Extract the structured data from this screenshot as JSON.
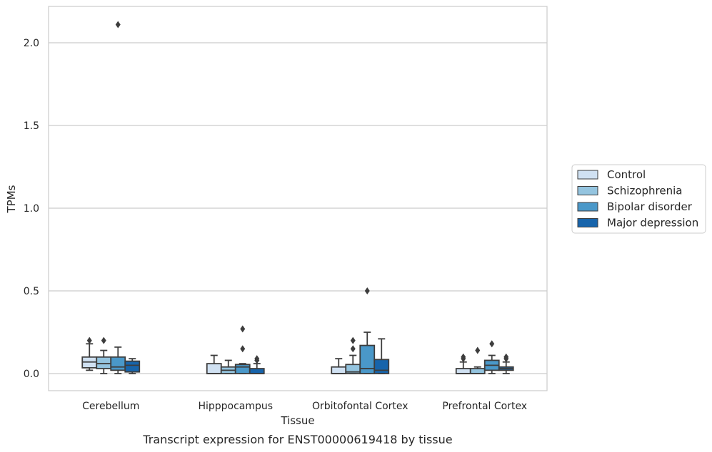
{
  "chart_data": {
    "type": "box",
    "title": "",
    "xlabel": "Tissue",
    "ylabel": "TPMs",
    "caption": "Transcript expression for ENST00000619418 by tissue",
    "ylim": [
      -0.1,
      2.22
    ],
    "yticks": [
      0.0,
      0.5,
      1.0,
      1.5,
      2.0
    ],
    "ytick_labels": [
      "0.0",
      "0.5",
      "1.0",
      "1.5",
      "2.0"
    ],
    "grid": "horizontal",
    "legend_position": "right",
    "categories": [
      "Cerebellum",
      "Hipppocampus",
      "Orbitofontal Cortex",
      "Prefrontal Cortex"
    ],
    "series": [
      {
        "name": "Control",
        "color": "#d0e1f2",
        "boxes": [
          {
            "whislo": 0.02,
            "q1": 0.035,
            "med": 0.07,
            "q3": 0.1,
            "whishi": 0.18,
            "fliers": [
              0.2
            ]
          },
          {
            "whislo": 0.0,
            "q1": 0.0,
            "med": 0.0,
            "q3": 0.06,
            "whishi": 0.11,
            "fliers": []
          },
          {
            "whislo": 0.0,
            "q1": 0.0,
            "med": 0.0,
            "q3": 0.04,
            "whishi": 0.09,
            "fliers": []
          },
          {
            "whislo": 0.0,
            "q1": 0.0,
            "med": 0.0,
            "q3": 0.03,
            "whishi": 0.07,
            "fliers": [
              0.09,
              0.1
            ]
          }
        ]
      },
      {
        "name": "Schizophrenia",
        "color": "#94c4df",
        "boxes": [
          {
            "whislo": 0.0,
            "q1": 0.03,
            "med": 0.06,
            "q3": 0.1,
            "whishi": 0.14,
            "fliers": [
              0.2
            ]
          },
          {
            "whislo": 0.0,
            "q1": 0.0,
            "med": 0.02,
            "q3": 0.04,
            "whishi": 0.08,
            "fliers": []
          },
          {
            "whislo": 0.0,
            "q1": 0.0,
            "med": 0.01,
            "q3": 0.055,
            "whishi": 0.11,
            "fliers": [
              0.15,
              0.2
            ]
          },
          {
            "whislo": 0.0,
            "q1": 0.0,
            "med": 0.0,
            "q3": 0.03,
            "whishi": 0.04,
            "fliers": [
              0.14
            ]
          }
        ]
      },
      {
        "name": "Bipolar disorder",
        "color": "#4a98c9",
        "boxes": [
          {
            "whislo": 0.0,
            "q1": 0.02,
            "med": 0.04,
            "q3": 0.1,
            "whishi": 0.16,
            "fliers": [
              2.11
            ]
          },
          {
            "whislo": 0.0,
            "q1": 0.0,
            "med": 0.04,
            "q3": 0.055,
            "whishi": 0.06,
            "fliers": [
              0.15,
              0.27
            ]
          },
          {
            "whislo": 0.0,
            "q1": 0.0,
            "med": 0.03,
            "q3": 0.17,
            "whishi": 0.25,
            "fliers": [
              0.5
            ]
          },
          {
            "whislo": 0.0,
            "q1": 0.02,
            "med": 0.05,
            "q3": 0.08,
            "whishi": 0.11,
            "fliers": [
              0.18
            ]
          }
        ]
      },
      {
        "name": "Major depression",
        "color": "#1764ab",
        "boxes": [
          {
            "whislo": 0.0,
            "q1": 0.01,
            "med": 0.05,
            "q3": 0.075,
            "whishi": 0.09,
            "fliers": []
          },
          {
            "whislo": 0.0,
            "q1": 0.0,
            "med": 0.0,
            "q3": 0.03,
            "whishi": 0.06,
            "fliers": [
              0.08,
              0.09
            ]
          },
          {
            "whislo": 0.0,
            "q1": 0.0,
            "med": 0.02,
            "q3": 0.085,
            "whishi": 0.21,
            "fliers": []
          },
          {
            "whislo": 0.0,
            "q1": 0.02,
            "med": 0.03,
            "q3": 0.04,
            "whishi": 0.07,
            "fliers": [
              0.09,
              0.1
            ]
          }
        ]
      }
    ]
  }
}
